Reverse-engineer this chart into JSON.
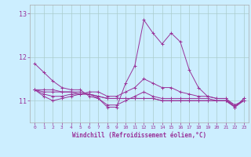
{
  "xlabel": "Windchill (Refroidissement éolien,°C)",
  "x_ticks": [
    0,
    1,
    2,
    3,
    4,
    5,
    6,
    7,
    8,
    9,
    10,
    11,
    12,
    13,
    14,
    15,
    16,
    17,
    18,
    19,
    20,
    21,
    22,
    23
  ],
  "ylim": [
    10.5,
    13.2
  ],
  "yticks": [
    11,
    12,
    13
  ],
  "background_color": "#cceeff",
  "grid_color": "#aacccc",
  "line_color": "#993399",
  "lines": [
    [
      11.85,
      11.65,
      11.45,
      11.3,
      11.25,
      11.25,
      11.1,
      11.05,
      10.85,
      10.85,
      11.4,
      11.8,
      12.85,
      12.55,
      12.3,
      12.55,
      12.35,
      11.7,
      11.3,
      11.1,
      11.05,
      11.05,
      10.85,
      11.05
    ],
    [
      11.25,
      11.25,
      11.25,
      11.2,
      11.2,
      11.15,
      11.15,
      11.1,
      11.05,
      11.05,
      11.05,
      11.05,
      11.05,
      11.05,
      11.0,
      11.0,
      11.0,
      11.0,
      11.0,
      11.0,
      11.0,
      11.0,
      10.9,
      11.0
    ],
    [
      11.25,
      11.2,
      11.2,
      11.2,
      11.2,
      11.2,
      11.15,
      11.05,
      10.9,
      10.9,
      11.0,
      11.1,
      11.2,
      11.1,
      11.05,
      11.05,
      11.05,
      11.05,
      11.05,
      11.05,
      11.0,
      11.0,
      10.85,
      11.05
    ],
    [
      11.25,
      11.1,
      11.0,
      11.05,
      11.1,
      11.15,
      11.2,
      11.2,
      11.1,
      11.1,
      11.2,
      11.3,
      11.5,
      11.4,
      11.3,
      11.3,
      11.2,
      11.15,
      11.1,
      11.1,
      11.05,
      11.05,
      10.9,
      11.0
    ],
    [
      11.25,
      11.15,
      11.1,
      11.1,
      11.15,
      11.15,
      11.15,
      11.1,
      11.05,
      11.05,
      11.05,
      11.05,
      11.05,
      11.05,
      11.0,
      11.0,
      11.0,
      11.0,
      11.0,
      11.0,
      11.0,
      11.0,
      10.85,
      11.0
    ]
  ]
}
